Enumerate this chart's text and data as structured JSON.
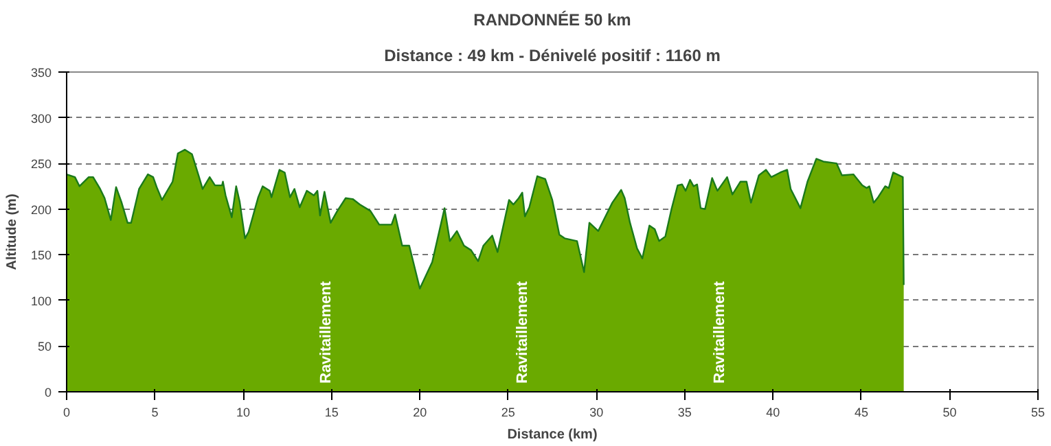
{
  "chart_data": {
    "type": "area",
    "title": "RANDONNÉE 50 km",
    "subtitle": "Distance : 49 km - Dénivelé positif : 1160 m",
    "xlabel": "Distance (km)",
    "ylabel": "Altitude (m)",
    "xlim": [
      0,
      55
    ],
    "xticks": [
      0,
      5,
      10,
      15,
      20,
      25,
      30,
      35,
      40,
      45,
      50,
      55
    ],
    "ylim": [
      0,
      350
    ],
    "yticks": [
      0,
      50,
      100,
      150,
      200,
      250,
      300,
      350
    ],
    "grid": "y",
    "series": [
      {
        "color": "#6aaa00",
        "x": [
          0,
          0.47,
          0.73,
          1.25,
          1.5,
          1.9,
          2.15,
          2.5,
          2.8,
          3.1,
          3.45,
          3.65,
          4.1,
          4.6,
          4.9,
          5.1,
          5.4,
          6.0,
          6.3,
          6.7,
          7.1,
          7.5,
          7.7,
          8.1,
          8.4,
          8.8,
          8.85,
          9.0,
          9.35,
          9.6,
          9.8,
          10.1,
          10.3,
          10.85,
          11.1,
          11.5,
          11.6,
          12.05,
          12.35,
          12.65,
          12.9,
          13.2,
          13.6,
          14.0,
          14.2,
          14.35,
          14.6,
          14.95,
          15.3,
          15.8,
          16.2,
          16.6,
          17.2,
          17.7,
          18.4,
          18.6,
          19.0,
          19.4,
          20.0,
          20.7,
          21.4,
          21.7,
          22.1,
          22.5,
          22.9,
          23.3,
          23.6,
          24.1,
          24.4,
          25.05,
          25.3,
          25.6,
          25.8,
          25.95,
          26.2,
          26.65,
          27.1,
          27.5,
          27.9,
          28.2,
          28.9,
          29.3,
          29.6,
          30.1,
          30.9,
          31.4,
          31.6,
          31.9,
          32.3,
          32.6,
          33.0,
          33.3,
          33.55,
          33.9,
          34.25,
          34.6,
          34.85,
          35.05,
          35.3,
          35.5,
          35.7,
          35.9,
          36.15,
          36.55,
          36.85,
          37.4,
          37.7,
          38.15,
          38.5,
          38.75,
          39.2,
          39.6,
          39.9,
          40.4,
          40.8,
          41.0,
          41.55,
          41.95,
          42.45,
          42.85,
          43.6,
          43.9,
          44.55,
          45.05,
          45.3,
          45.45,
          45.7,
          45.95,
          46.35,
          46.55,
          46.8,
          47.35,
          47.4
        ],
        "values": [
          238,
          235,
          225,
          235,
          235,
          222,
          212,
          188,
          224,
          208,
          185,
          185,
          222,
          238,
          235,
          224,
          210,
          230,
          261,
          265,
          260,
          235,
          222,
          235,
          226,
          226,
          230,
          215,
          191,
          225,
          208,
          168,
          175,
          213,
          225,
          220,
          213,
          243,
          240,
          213,
          222,
          202,
          220,
          215,
          220,
          193,
          219,
          185,
          197,
          212,
          211,
          205,
          198,
          183,
          183,
          194,
          160,
          160,
          113,
          142,
          201,
          165,
          176,
          160,
          155,
          143,
          160,
          171,
          153,
          210,
          205,
          212,
          218,
          192,
          202,
          236,
          233,
          210,
          172,
          168,
          165,
          131,
          185,
          176,
          207,
          221,
          212,
          185,
          157,
          146,
          182,
          178,
          165,
          170,
          200,
          226,
          227,
          220,
          232,
          225,
          227,
          201,
          200,
          234,
          220,
          235,
          216,
          230,
          230,
          207,
          237,
          243,
          235,
          240,
          243,
          222,
          201,
          230,
          255,
          252,
          250,
          237,
          238,
          226,
          223,
          225,
          207,
          213,
          225,
          223,
          240,
          235,
          117
        ]
      }
    ],
    "annotations": [
      "Ravitaillement",
      "Ravitaillement",
      "Ravitaillement"
    ]
  }
}
